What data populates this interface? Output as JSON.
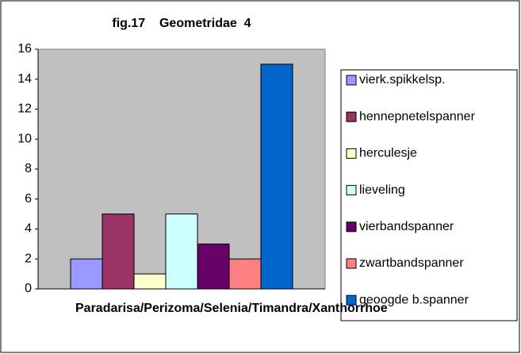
{
  "chart_data": {
    "type": "bar",
    "title": "fig.17    Geometridae  4",
    "categories": [
      "Paradarisa/Perizoma/Selenia/Timandra/Xanthorrhoe"
    ],
    "series": [
      {
        "name": "vierk.spikkelsp.",
        "color": "#9999FF",
        "values": [
          2
        ]
      },
      {
        "name": "hennepnetelspanner",
        "color": "#993366",
        "values": [
          5
        ]
      },
      {
        "name": "herculesje",
        "color": "#FFFFCC",
        "values": [
          1
        ]
      },
      {
        "name": "lieveling",
        "color": "#CCFFFF",
        "values": [
          5
        ]
      },
      {
        "name": "vierbandspanner",
        "color": "#660066",
        "values": [
          3
        ]
      },
      {
        "name": "zwartbandspanner",
        "color": "#FF8080",
        "values": [
          2
        ]
      },
      {
        "name": "geoogde b.spanner",
        "color": "#0066CC",
        "values": [
          15
        ]
      }
    ],
    "ylim": [
      0,
      16
    ],
    "yticks": [
      0,
      2,
      4,
      6,
      8,
      10,
      12,
      14,
      16
    ],
    "legend": "right",
    "plot_background": "#C0C0C0"
  }
}
